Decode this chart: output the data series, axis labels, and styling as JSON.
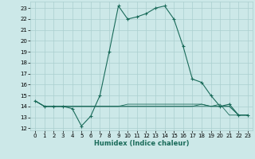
{
  "title": "",
  "xlabel": "Humidex (Indice chaleur)",
  "ylabel": "",
  "bg_color": "#cce8e8",
  "grid_color": "#aacfcf",
  "line_color": "#1a6b5a",
  "xlim": [
    -0.5,
    23.5
  ],
  "ylim": [
    11.8,
    23.6
  ],
  "yticks": [
    12,
    13,
    14,
    15,
    16,
    17,
    18,
    19,
    20,
    21,
    22,
    23
  ],
  "xticks": [
    0,
    1,
    2,
    3,
    4,
    5,
    6,
    7,
    8,
    9,
    10,
    11,
    12,
    13,
    14,
    15,
    16,
    17,
    18,
    19,
    20,
    21,
    22,
    23
  ],
  "series": [
    [
      14.5,
      14.0,
      14.0,
      14.0,
      13.8,
      12.2,
      13.1,
      15.0,
      19.0,
      23.2,
      22.0,
      22.2,
      22.5,
      23.0,
      23.2,
      22.0,
      19.5,
      16.5,
      16.2,
      15.0,
      14.0,
      14.2,
      13.2,
      13.2
    ],
    [
      14.5,
      14.0,
      14.0,
      14.0,
      14.0,
      14.0,
      14.0,
      14.0,
      14.0,
      14.0,
      14.0,
      14.0,
      14.0,
      14.0,
      14.0,
      14.0,
      14.0,
      14.0,
      14.0,
      14.0,
      14.0,
      14.0,
      13.2,
      13.2
    ],
    [
      14.5,
      14.0,
      14.0,
      14.0,
      14.0,
      14.0,
      14.0,
      14.0,
      14.0,
      14.0,
      14.2,
      14.2,
      14.2,
      14.2,
      14.2,
      14.2,
      14.2,
      14.2,
      14.2,
      14.0,
      14.0,
      14.0,
      13.2,
      13.2
    ],
    [
      14.5,
      14.0,
      14.0,
      14.0,
      14.0,
      14.0,
      14.0,
      14.0,
      14.0,
      14.0,
      14.0,
      14.0,
      14.0,
      14.0,
      14.0,
      14.0,
      14.0,
      14.0,
      14.2,
      14.0,
      14.2,
      13.2,
      13.2,
      13.2
    ]
  ]
}
